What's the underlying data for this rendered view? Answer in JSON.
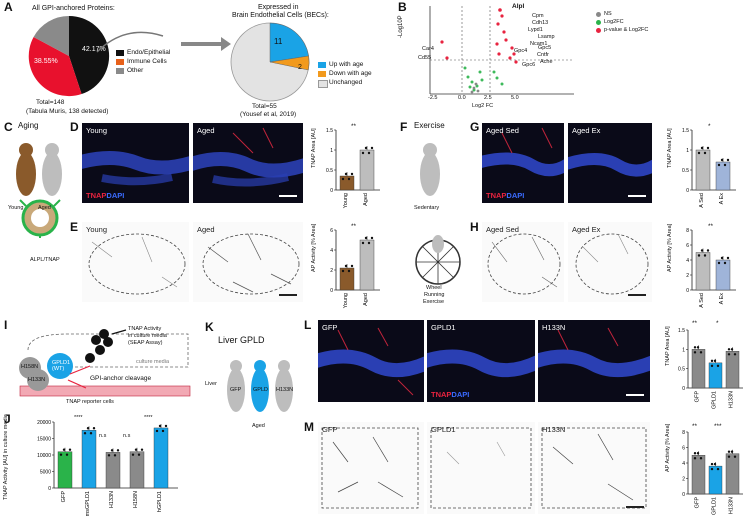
{
  "panels": {
    "A": "A",
    "B": "B",
    "C": "C",
    "D": "D",
    "E": "E",
    "F": "F",
    "G": "G",
    "H": "H",
    "I": "I",
    "J": "J",
    "K": "K",
    "L": "L",
    "M": "M"
  },
  "A": {
    "title": "All GPI-anchored Proteins:",
    "pie_pct_red": "38.55%",
    "pie_pct_black": "42.17%",
    "legend": [
      "Endo/Epithelial",
      "Immune Cells",
      "Other"
    ],
    "total": "Total=148",
    "source": "(Tabula Muris, 138 detected)",
    "right_title_1": "Expressed in",
    "right_title_2": "Brain Endothelial Cells (BECs):",
    "right_count_up": "11",
    "right_count_down": "2",
    "right_legend": [
      "Up with age",
      "Down with age",
      "Unchanged"
    ],
    "right_total": "Total=55",
    "right_source": "(Yousef et al, 2019)"
  },
  "B": {
    "ylabel": "-Log10P",
    "xlabel": "Log2 FC",
    "xticks": [
      "-2.5",
      "0.0",
      "2.5",
      "5.0"
    ],
    "legend": [
      "NS",
      "Log2FC",
      "p-value & Log2FC"
    ],
    "genes": [
      "Alpl",
      "Cpm",
      "Cdh13",
      "Lypd1",
      "Lsamp",
      "Ncam1",
      "Gpc4",
      "Gpc5",
      "Cntfr",
      "Ache",
      "Gpc6",
      "Car4",
      "Cd55"
    ]
  },
  "C": {
    "title": "Aging",
    "young": "Young",
    "aged": "Aged",
    "alpl": "ALPL/TNAP"
  },
  "D": {
    "young": "Young",
    "aged": "Aged",
    "stain_r": "TNAP",
    "stain_b": "DAPI",
    "ylabel": "TNAP Area [AU]",
    "sig": "**",
    "xt": [
      "Young",
      "Aged"
    ]
  },
  "E": {
    "young": "Young",
    "aged": "Aged",
    "ylabel": "AP Activity [% Area]",
    "sig": "**",
    "xt": [
      "Young",
      "Aged"
    ]
  },
  "F": {
    "title": "Exercise",
    "sed": "Sedentary",
    "wheel": "Wheel",
    "running": "Running",
    "exercise": "Exercise"
  },
  "G": {
    "left": "Aged Sed",
    "right": "Aged Ex",
    "stain_r": "TNAP",
    "stain_b": "DAPI",
    "ylabel": "TNAP Area [AU]",
    "sig": "*",
    "xt": [
      "A Sed",
      "A Ex"
    ]
  },
  "H": {
    "left": "Aged Sed",
    "right": "Aged Ex",
    "ylabel": "AP Activity [% Area]",
    "sig": "**",
    "xt": [
      "A Sed",
      "A Ex"
    ]
  },
  "I": {
    "tnap_activity": "TNAP Activity",
    "in_culture": "in culture media",
    "seap": "(SEAP Assay)",
    "culture_media": "culture media",
    "cleavage": "GPI-anchor cleavage",
    "reporter": "TNAP reporter cells",
    "gpld1": "GPLD1",
    "wt": "(WT)",
    "h158n": "H158N",
    "h133n": "H133N"
  },
  "J": {
    "ylabel": "TNAP Activity [AU] in culture media",
    "yticks": [
      "0",
      "5000",
      "10000",
      "15000",
      "20000"
    ],
    "xt": [
      "GFP",
      "msGPLD1",
      "H133N",
      "H158N",
      "hGPLD1"
    ],
    "sig": [
      "****",
      "n.s",
      "n.s",
      "****"
    ]
  },
  "K": {
    "title": "Liver GPLD",
    "liver": "Liver",
    "gfp": "GFP",
    "gpld": "GPLD",
    "h133n": "H133N",
    "aged": "Aged"
  },
  "L": {
    "gfp": "GFP",
    "gpld1": "GPLD1",
    "h133n": "H133N",
    "stain_r": "TNAP",
    "stain_b": "DAPI",
    "ylabel": "TNAP Area [AU]",
    "sig": [
      "**",
      "*"
    ],
    "xt": [
      "GFP",
      "GPLD1",
      "H133N"
    ]
  },
  "M": {
    "gfp": "GFP",
    "gpld1": "GPLD1",
    "h133n": "H133N",
    "ylabel": "AP Activity [% Area]",
    "sig": [
      "**",
      "***"
    ],
    "xt": [
      "GFP",
      "GPLD1",
      "H133N"
    ]
  },
  "chart_data": [
    {
      "type": "pie",
      "title": "All GPI-anchored Proteins:",
      "labels": [
        "Endo/Epithelial",
        "Immune Cells",
        "Other"
      ],
      "values": [
        42.17,
        38.55,
        19.28
      ],
      "colors": [
        "#111111",
        "#e8112d",
        "#8a8a8a"
      ]
    },
    {
      "type": "pie",
      "title": "Expressed in Brain Endothelial Cells (BECs):",
      "labels": [
        "Up with age",
        "Down with age",
        "Unchanged"
      ],
      "values": [
        11,
        2,
        42
      ],
      "colors": [
        "#1aa3e6",
        "#f29a1d",
        "#e3e3e3"
      ]
    },
    {
      "type": "bar",
      "panel": "D",
      "categories": [
        "Young",
        "Aged"
      ],
      "values": [
        0.35,
        1.0
      ],
      "ylim": [
        0,
        1.5
      ],
      "yticks": [
        0,
        0.5,
        1.0,
        1.5
      ],
      "colors": [
        "#8a5a2b",
        "#bdbdbd"
      ]
    },
    {
      "type": "bar",
      "panel": "E",
      "categories": [
        "Young",
        "Aged"
      ],
      "values": [
        2.2,
        5.0
      ],
      "ylim": [
        0,
        6
      ],
      "yticks": [
        0,
        2,
        4,
        6
      ],
      "colors": [
        "#8a5a2b",
        "#bdbdbd"
      ]
    },
    {
      "type": "bar",
      "panel": "G",
      "categories": [
        "A Sed",
        "A Ex"
      ],
      "values": [
        1.0,
        0.7
      ],
      "ylim": [
        0,
        1.5
      ],
      "yticks": [
        0,
        0.5,
        1.0,
        1.5
      ],
      "colors": [
        "#bdbdbd",
        "#9fb4d9"
      ]
    },
    {
      "type": "bar",
      "panel": "H",
      "categories": [
        "A Sed",
        "A Ex"
      ],
      "values": [
        5.0,
        4.0
      ],
      "ylim": [
        0,
        8
      ],
      "yticks": [
        0,
        2,
        4,
        6,
        8
      ],
      "colors": [
        "#bdbdbd",
        "#9fb4d9"
      ]
    },
    {
      "type": "bar",
      "panel": "J",
      "categories": [
        "GFP",
        "msGPLD1",
        "H133N",
        "H158N",
        "hGPLD1"
      ],
      "values": [
        11000,
        17500,
        10800,
        11000,
        18200
      ],
      "ylim": [
        0,
        20000
      ],
      "yticks": [
        0,
        5000,
        10000,
        15000,
        20000
      ],
      "colors": [
        "#2ab34a",
        "#1aa3e6",
        "#8a8a8a",
        "#8a8a8a",
        "#1aa3e6"
      ]
    },
    {
      "type": "bar",
      "panel": "L",
      "categories": [
        "GFP",
        "GPLD1",
        "H133N"
      ],
      "values": [
        1.0,
        0.65,
        0.95
      ],
      "ylim": [
        0,
        1.5
      ],
      "yticks": [
        0,
        0.5,
        1.0,
        1.5
      ],
      "colors": [
        "#8a8a8a",
        "#1aa3e6",
        "#8a8a8a"
      ]
    },
    {
      "type": "bar",
      "panel": "M",
      "categories": [
        "GFP",
        "GPLD1",
        "H133N"
      ],
      "values": [
        5.0,
        3.6,
        5.2
      ],
      "ylim": [
        0,
        8
      ],
      "yticks": [
        0,
        2,
        4,
        6,
        8
      ],
      "colors": [
        "#8a8a8a",
        "#1aa3e6",
        "#8a8a8a"
      ]
    }
  ]
}
